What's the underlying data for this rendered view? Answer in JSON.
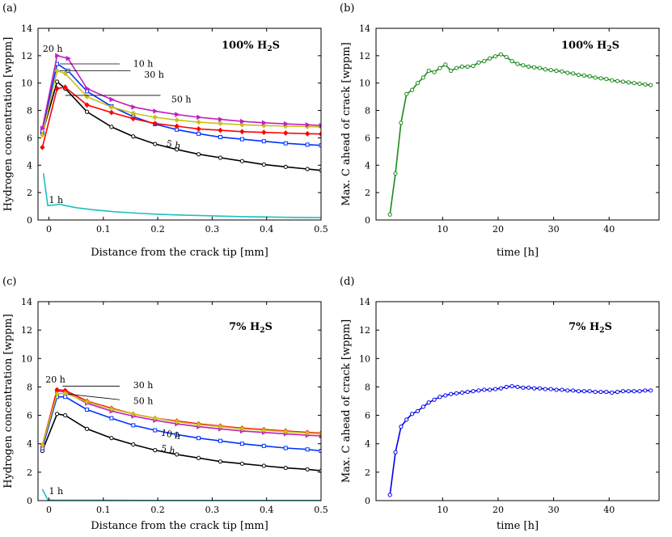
{
  "chart_data": [
    {
      "panel_label": "(a)",
      "type": "line",
      "title": "100% H",
      "title_sub": "2",
      "title_end": "S",
      "xlabel": "Distance from the crack tip [mm]",
      "ylabel": "Hydrogen concentration [wppm]",
      "xlim": [
        -0.02,
        0.5
      ],
      "ylim": [
        0,
        14
      ],
      "xticks": [
        "0",
        "0.1",
        "0.2",
        "0.3",
        "0.4",
        "0.5"
      ],
      "xtick_values": [
        0,
        0.1,
        0.2,
        0.3,
        0.4,
        0.5
      ],
      "yticks": [
        "0",
        "2",
        "4",
        "6",
        "8",
        "10",
        "12",
        "14"
      ],
      "ytick_values": [
        0,
        2,
        4,
        6,
        8,
        10,
        12,
        14
      ],
      "series": [
        {
          "name": "1 h",
          "color": "#1fbfbf",
          "marker": "none",
          "x": [
            -0.01,
            -0.002,
            0.01,
            0.02,
            0.03,
            0.05,
            0.08,
            0.12,
            0.16,
            0.2,
            0.25,
            0.3,
            0.35,
            0.4,
            0.45,
            0.5
          ],
          "y": [
            3.4,
            1.05,
            1.1,
            1.15,
            1.05,
            0.9,
            0.75,
            0.6,
            0.5,
            0.42,
            0.35,
            0.3,
            0.25,
            0.22,
            0.19,
            0.17
          ]
        },
        {
          "name": "5 h",
          "color": "#000000",
          "marker": "circle",
          "x": [
            -0.012,
            0.015,
            0.03,
            0.07,
            0.115,
            0.155,
            0.195,
            0.235,
            0.275,
            0.315,
            0.355,
            0.395,
            0.435,
            0.475,
            0.5
          ],
          "y": [
            6.3,
            10.1,
            9.6,
            7.9,
            6.8,
            6.1,
            5.55,
            5.15,
            4.8,
            4.55,
            4.3,
            4.05,
            3.88,
            3.72,
            3.62
          ]
        },
        {
          "name": "10 h",
          "color": "#0033ff",
          "marker": "square",
          "x": [
            -0.012,
            0.015,
            0.035,
            0.07,
            0.115,
            0.155,
            0.195,
            0.235,
            0.275,
            0.315,
            0.355,
            0.395,
            0.435,
            0.475,
            0.5
          ],
          "y": [
            6.5,
            11.4,
            10.9,
            9.4,
            8.3,
            7.55,
            7.0,
            6.6,
            6.3,
            6.05,
            5.9,
            5.75,
            5.6,
            5.5,
            5.45
          ]
        },
        {
          "name": "50 h",
          "color": "#ff0000",
          "marker": "diamond",
          "x": [
            -0.012,
            0.015,
            0.03,
            0.07,
            0.115,
            0.155,
            0.195,
            0.235,
            0.275,
            0.315,
            0.355,
            0.395,
            0.435,
            0.475,
            0.5
          ],
          "y": [
            5.3,
            9.6,
            9.7,
            8.4,
            7.85,
            7.4,
            7.05,
            6.85,
            6.65,
            6.55,
            6.45,
            6.4,
            6.35,
            6.3,
            6.28
          ]
        },
        {
          "name": "30 h",
          "color": "#c8c01a",
          "marker": "diamond",
          "x": [
            -0.012,
            0.015,
            0.03,
            0.07,
            0.115,
            0.155,
            0.195,
            0.235,
            0.275,
            0.315,
            0.355,
            0.395,
            0.435,
            0.475,
            0.5
          ],
          "y": [
            6.2,
            10.9,
            10.7,
            9.0,
            8.25,
            7.8,
            7.5,
            7.3,
            7.15,
            7.05,
            6.95,
            6.9,
            6.85,
            6.82,
            6.8
          ]
        },
        {
          "name": "20 h",
          "color": "#c020c0",
          "marker": "triangle",
          "x": [
            -0.012,
            0.015,
            0.035,
            0.07,
            0.115,
            0.155,
            0.195,
            0.235,
            0.275,
            0.315,
            0.355,
            0.395,
            0.435,
            0.475,
            0.5
          ],
          "y": [
            6.7,
            12.0,
            11.8,
            9.6,
            8.8,
            8.25,
            7.95,
            7.7,
            7.5,
            7.35,
            7.2,
            7.1,
            7.02,
            6.95,
            6.9
          ]
        }
      ],
      "annotations": [
        "20 h",
        "10 h",
        "30 h",
        "50 h",
        "5 h",
        "1 h"
      ]
    },
    {
      "panel_label": "(b)",
      "type": "line",
      "title": "100% H",
      "title_sub": "2",
      "title_end": "S",
      "xlabel": "time [h]",
      "ylabel": "Max. C ahead of crack [wppm]",
      "xlim": [
        -2,
        49
      ],
      "ylim": [
        0,
        14
      ],
      "xticks": [
        "10",
        "20",
        "30",
        "40"
      ],
      "xtick_values": [
        10,
        20,
        30,
        40
      ],
      "yticks": [
        "0",
        "2",
        "4",
        "6",
        "8",
        "10",
        "12",
        "14"
      ],
      "ytick_values": [
        0,
        2,
        4,
        6,
        8,
        10,
        12,
        14
      ],
      "series": [
        {
          "name": "Max C",
          "color": "#1a8a1a",
          "marker": "circle",
          "x": [
            0.5,
            1.5,
            2.5,
            3.5,
            4.5,
            5.5,
            6.5,
            7.5,
            8.5,
            9.5,
            10.5,
            11.5,
            12.5,
            13.5,
            14.5,
            15.5,
            16.5,
            17.5,
            18.5,
            19.5,
            20.5,
            21.5,
            22.5,
            23.5,
            24.5,
            25.5,
            26.5,
            27.5,
            28.5,
            29.5,
            30.5,
            31.5,
            32.5,
            33.5,
            34.5,
            35.5,
            36.5,
            37.5,
            38.5,
            39.5,
            40.5,
            41.5,
            42.5,
            43.5,
            44.5,
            45.5,
            46.5,
            47.5
          ],
          "y": [
            0.4,
            3.4,
            7.1,
            9.2,
            9.5,
            10.0,
            10.4,
            10.9,
            10.8,
            11.1,
            11.35,
            10.9,
            11.1,
            11.2,
            11.2,
            11.25,
            11.5,
            11.6,
            11.8,
            11.95,
            12.1,
            11.9,
            11.6,
            11.4,
            11.3,
            11.2,
            11.15,
            11.1,
            11.0,
            10.95,
            10.9,
            10.85,
            10.75,
            10.7,
            10.6,
            10.55,
            10.5,
            10.4,
            10.35,
            10.3,
            10.2,
            10.15,
            10.1,
            10.05,
            10.0,
            9.95,
            9.9,
            9.85
          ]
        }
      ]
    },
    {
      "panel_label": "(c)",
      "type": "line",
      "title": "7% H",
      "title_sub": "2",
      "title_end": "S",
      "xlabel": "Distance from the crack tip [mm]",
      "ylabel": "Hydrogen concentration [wppm]",
      "xlim": [
        -0.02,
        0.5
      ],
      "ylim": [
        0,
        14
      ],
      "xticks": [
        "0",
        "0.1",
        "0.2",
        "0.3",
        "0.4",
        "0.5"
      ],
      "xtick_values": [
        0,
        0.1,
        0.2,
        0.3,
        0.4,
        0.5
      ],
      "yticks": [
        "0",
        "2",
        "4",
        "6",
        "8",
        "10",
        "12",
        "14"
      ],
      "ytick_values": [
        0,
        2,
        4,
        6,
        8,
        10,
        12,
        14
      ],
      "series": [
        {
          "name": "1 h",
          "color": "#1fbfbf",
          "marker": "none",
          "x": [
            -0.012,
            -0.002,
            0.01,
            0.05,
            0.1,
            0.2,
            0.3,
            0.4,
            0.5
          ],
          "y": [
            0.8,
            0.05,
            0.03,
            0.02,
            0.02,
            0.01,
            0.01,
            0.01,
            0.01
          ]
        },
        {
          "name": "5 h",
          "color": "#000000",
          "marker": "circle",
          "x": [
            -0.012,
            0.015,
            0.03,
            0.07,
            0.115,
            0.155,
            0.195,
            0.235,
            0.275,
            0.315,
            0.355,
            0.395,
            0.435,
            0.475,
            0.5
          ],
          "y": [
            3.5,
            6.1,
            6.0,
            5.05,
            4.4,
            3.95,
            3.55,
            3.25,
            3.0,
            2.75,
            2.6,
            2.45,
            2.3,
            2.2,
            2.1
          ]
        },
        {
          "name": "10 h",
          "color": "#0033ff",
          "marker": "square",
          "x": [
            -0.012,
            0.015,
            0.03,
            0.07,
            0.115,
            0.155,
            0.195,
            0.235,
            0.275,
            0.315,
            0.355,
            0.395,
            0.435,
            0.475,
            0.5
          ],
          "y": [
            3.7,
            7.3,
            7.3,
            6.4,
            5.8,
            5.3,
            4.95,
            4.65,
            4.4,
            4.2,
            4.0,
            3.85,
            3.7,
            3.6,
            3.5
          ]
        },
        {
          "name": "20 h",
          "color": "#c020c0",
          "marker": "triangle",
          "x": [
            -0.012,
            0.015,
            0.03,
            0.07,
            0.115,
            0.155,
            0.195,
            0.235,
            0.275,
            0.315,
            0.355,
            0.395,
            0.435,
            0.475,
            0.5
          ],
          "y": [
            3.85,
            7.7,
            7.65,
            6.85,
            6.3,
            5.95,
            5.65,
            5.4,
            5.2,
            5.05,
            4.9,
            4.8,
            4.7,
            4.6,
            4.55
          ]
        },
        {
          "name": "30 h",
          "color": "#ff0000",
          "marker": "diamond",
          "x": [
            -0.012,
            0.015,
            0.03,
            0.07,
            0.115,
            0.155,
            0.195,
            0.235,
            0.275,
            0.315,
            0.355,
            0.395,
            0.435,
            0.475,
            0.5
          ],
          "y": [
            3.9,
            7.8,
            7.75,
            7.0,
            6.5,
            6.1,
            5.8,
            5.6,
            5.4,
            5.25,
            5.1,
            5.0,
            4.9,
            4.8,
            4.75
          ]
        },
        {
          "name": "50 h",
          "color": "#c8c01a",
          "marker": "diamond",
          "x": [
            -0.012,
            0.015,
            0.03,
            0.07,
            0.115,
            0.155,
            0.195,
            0.235,
            0.275,
            0.315,
            0.355,
            0.395,
            0.435,
            0.475,
            0.5
          ],
          "y": [
            3.9,
            7.5,
            7.55,
            6.95,
            6.45,
            6.1,
            5.8,
            5.55,
            5.35,
            5.2,
            5.05,
            4.95,
            4.85,
            4.75,
            4.7
          ]
        }
      ],
      "annotations": [
        "20 h",
        "30 h",
        "50 h",
        "10 h",
        "5 h",
        "1 h"
      ]
    },
    {
      "panel_label": "(d)",
      "type": "line",
      "title": "7% H",
      "title_sub": "2",
      "title_end": "S",
      "xlabel": "time [h]",
      "ylabel": "Max. C ahead of crack [wppm]",
      "xlim": [
        -2,
        49
      ],
      "ylim": [
        0,
        14
      ],
      "xticks": [
        "10",
        "20",
        "30",
        "40"
      ],
      "xtick_values": [
        10,
        20,
        30,
        40
      ],
      "yticks": [
        "0",
        "2",
        "4",
        "6",
        "8",
        "10",
        "12",
        "14"
      ],
      "ytick_values": [
        0,
        2,
        4,
        6,
        8,
        10,
        12,
        14
      ],
      "series": [
        {
          "name": "Max C",
          "color": "#0000ee",
          "marker": "circle",
          "x": [
            0.5,
            1.5,
            2.5,
            3.5,
            4.5,
            5.5,
            6.5,
            7.5,
            8.5,
            9.5,
            10.5,
            11.5,
            12.5,
            13.5,
            14.5,
            15.5,
            16.5,
            17.5,
            18.5,
            19.5,
            20.5,
            21.5,
            22.5,
            23.5,
            24.5,
            25.5,
            26.5,
            27.5,
            28.5,
            29.5,
            30.5,
            31.5,
            32.5,
            33.5,
            34.5,
            35.5,
            36.5,
            37.5,
            38.5,
            39.5,
            40.5,
            41.5,
            42.5,
            43.5,
            44.5,
            45.5,
            46.5,
            47.5
          ],
          "y": [
            0.4,
            3.4,
            5.2,
            5.7,
            6.1,
            6.3,
            6.6,
            6.9,
            7.1,
            7.3,
            7.4,
            7.5,
            7.55,
            7.6,
            7.65,
            7.7,
            7.75,
            7.8,
            7.8,
            7.85,
            7.9,
            8.0,
            8.05,
            8.0,
            7.95,
            7.95,
            7.9,
            7.9,
            7.85,
            7.85,
            7.8,
            7.8,
            7.75,
            7.75,
            7.7,
            7.7,
            7.7,
            7.65,
            7.65,
            7.65,
            7.6,
            7.65,
            7.7,
            7.7,
            7.7,
            7.7,
            7.75,
            7.75
          ]
        }
      ]
    }
  ]
}
